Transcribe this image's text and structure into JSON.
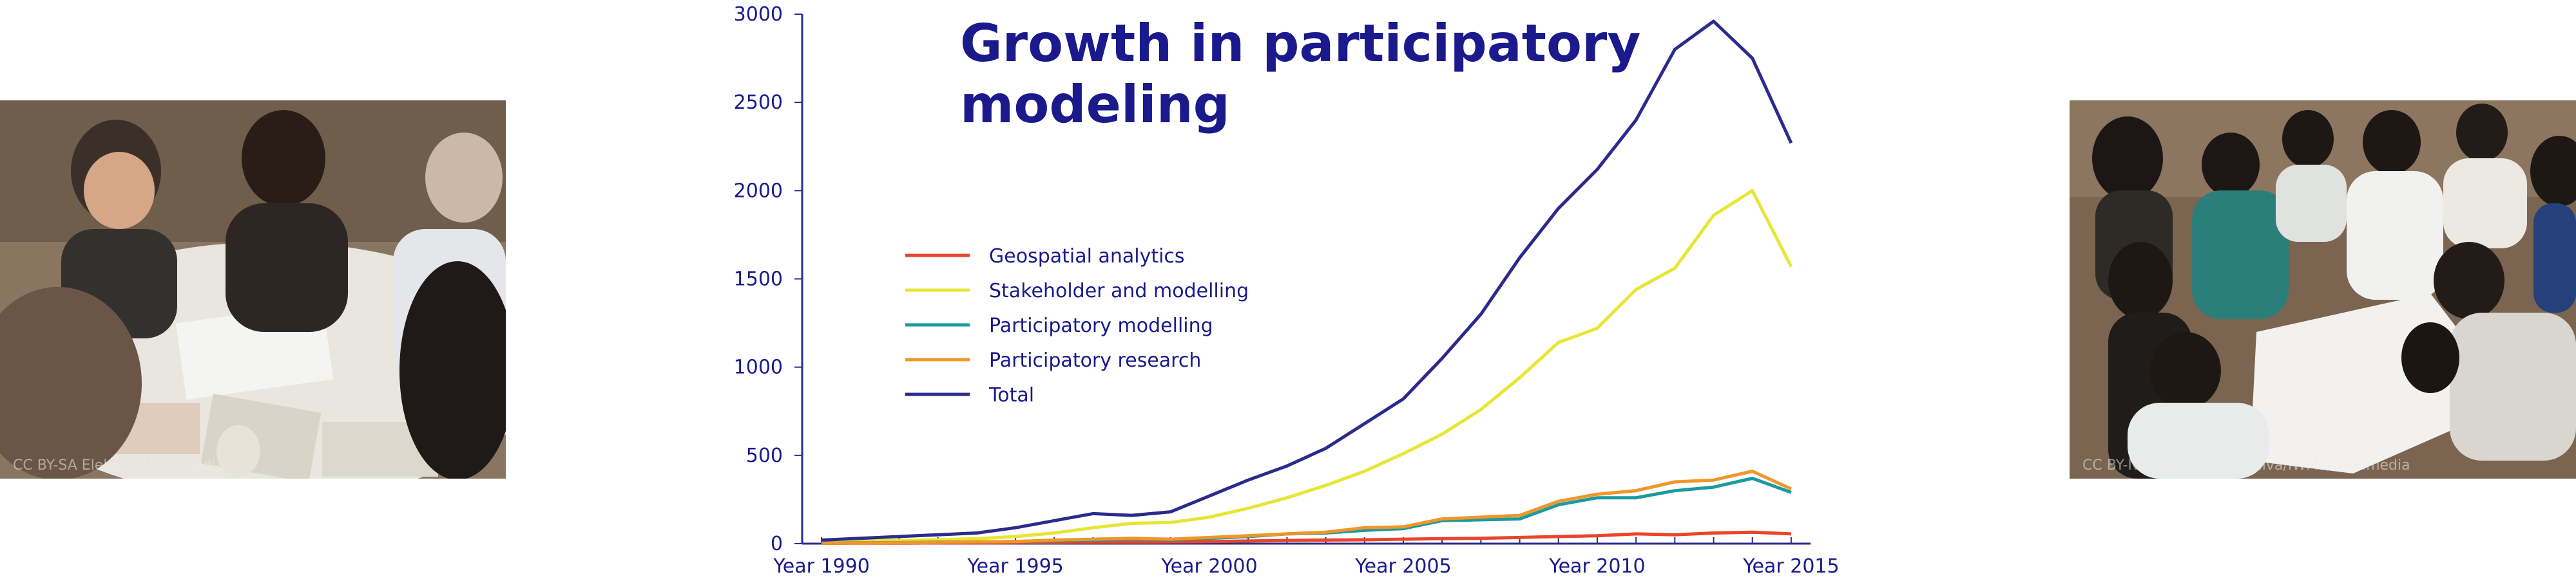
{
  "photos": {
    "left": {
      "credit": "CC BY-SA Eleberti / Wikimedia"
    },
    "right": {
      "credit": "CC BY-NC-ND Sanjiv de Silva/IWMI / Wikimedia"
    }
  },
  "chart_data": {
    "type": "line",
    "title_line1": "Growth in participatory",
    "title_line2": "modeling",
    "xlabel": "",
    "ylabel": "",
    "x": [
      1990,
      1991,
      1992,
      1993,
      1994,
      1995,
      1996,
      1997,
      1998,
      1999,
      2000,
      2001,
      2002,
      2003,
      2004,
      2005,
      2006,
      2007,
      2008,
      2009,
      2010,
      2011,
      2012,
      2013,
      2014,
      2015
    ],
    "xlim": [
      1989.5,
      2015.5
    ],
    "ylim": [
      0,
      3000
    ],
    "x_ticks": [
      1990,
      1995,
      2000,
      2005,
      2010,
      2015
    ],
    "x_tick_labels": [
      "Year 1990",
      "Year 1995",
      "Year 2000",
      "Year 2005",
      "Year 2010",
      "Year 2015"
    ],
    "y_ticks": [
      0,
      500,
      1000,
      1500,
      2000,
      2500,
      3000
    ],
    "y_tick_labels": [
      "0",
      "500",
      "1000",
      "1500",
      "2000",
      "2500",
      "3000"
    ],
    "legend_position": "center-left",
    "series": [
      {
        "name": "Geospatial analytics",
        "color": "#e8452a",
        "values": [
          2,
          3,
          3,
          4,
          4,
          5,
          6,
          8,
          8,
          10,
          12,
          15,
          18,
          20,
          22,
          25,
          28,
          30,
          35,
          40,
          45,
          55,
          50,
          60,
          65,
          55
        ]
      },
      {
        "name": "Stakeholder and modelling",
        "color": "#e6e635",
        "values": [
          10,
          15,
          18,
          22,
          28,
          40,
          60,
          90,
          115,
          120,
          150,
          200,
          260,
          330,
          410,
          510,
          620,
          760,
          940,
          1140,
          1220,
          1440,
          1560,
          1860,
          2000,
          1570
        ]
      },
      {
        "name": "Participatory modelling",
        "color": "#1b9aa0",
        "values": [
          3,
          5,
          6,
          8,
          10,
          12,
          15,
          20,
          25,
          22,
          30,
          40,
          55,
          60,
          75,
          85,
          130,
          135,
          140,
          220,
          260,
          260,
          300,
          320,
          370,
          290
        ]
      },
      {
        "name": "Participatory research",
        "color": "#f0962a",
        "values": [
          2,
          4,
          5,
          7,
          10,
          12,
          20,
          25,
          30,
          25,
          35,
          45,
          55,
          65,
          90,
          95,
          140,
          150,
          160,
          240,
          280,
          300,
          350,
          360,
          410,
          310
        ]
      },
      {
        "name": "Total",
        "color": "#2b2b8c",
        "values": [
          20,
          30,
          40,
          50,
          60,
          90,
          130,
          170,
          160,
          180,
          270,
          360,
          440,
          540,
          680,
          820,
          1050,
          1300,
          1620,
          1900,
          2120,
          2400,
          2800,
          2960,
          2750,
          2270
        ]
      }
    ]
  }
}
